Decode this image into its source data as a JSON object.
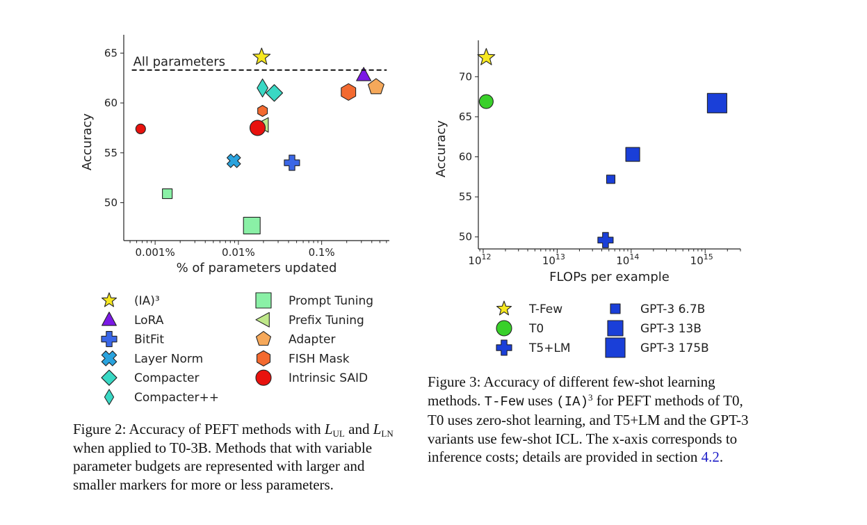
{
  "figure2": {
    "caption_label": "Figure 2:",
    "caption_parts": [
      "Accuracy of PEFT methods with",
      "L",
      "UL",
      "and",
      "L",
      "LN",
      "when applied to T0-3B. Methods that with variable parameter budgets are represented with larger and smaller markers for more or less parameters."
    ],
    "annotation": "All parameters",
    "legend": [
      {
        "label": "(IA)³",
        "marker": "star",
        "color": "#f7e81f"
      },
      {
        "label": "LoRA",
        "marker": "triangle-up",
        "color": "#7b18e6"
      },
      {
        "label": "BitFit",
        "marker": "plus",
        "color": "#3a66e6"
      },
      {
        "label": "Layer Norm",
        "marker": "x",
        "color": "#2aa3de"
      },
      {
        "label": "Compacter",
        "marker": "diamond",
        "color": "#39d8c4"
      },
      {
        "label": "Compacter++",
        "marker": "thin-diamond",
        "color": "#39d8c4"
      },
      {
        "label": "Prompt Tuning",
        "marker": "square",
        "color": "#8af0a6"
      },
      {
        "label": "Prefix Tuning",
        "marker": "triangle-left",
        "color": "#bfe88a"
      },
      {
        "label": "Adapter",
        "marker": "pentagon",
        "color": "#f5a85a"
      },
      {
        "label": "FISH Mask",
        "marker": "hexagon",
        "color": "#f36a30"
      },
      {
        "label": "Intrinsic SAID",
        "marker": "circle",
        "color": "#e8120e"
      }
    ]
  },
  "figure3": {
    "caption_label": "Figure 3:",
    "caption_parts": [
      "Accuracy of different few-shot learning methods.",
      "T-Few",
      "uses",
      "(IA)",
      "3",
      "for PEFT methods of T0, T0 uses zero-shot learning, and T5+LM and the GPT-3 variants use few-shot ICL. The x-axis corresponds to inference costs; details are provided in section",
      "4.2",
      "."
    ],
    "legend": [
      {
        "label": "T-Few",
        "marker": "star",
        "color": "#f7e81f"
      },
      {
        "label": "T0",
        "marker": "circle",
        "color": "#39d02a"
      },
      {
        "label": "T5+LM",
        "marker": "plus",
        "color": "#1a3fd8"
      },
      {
        "label": "GPT-3 6.7B",
        "marker": "square",
        "color": "#1a3fd8"
      },
      {
        "label": "GPT-3 13B",
        "marker": "square",
        "color": "#1a3fd8"
      },
      {
        "label": "GPT-3 175B",
        "marker": "square",
        "color": "#1a3fd8"
      }
    ]
  },
  "chart_data": [
    {
      "type": "scatter",
      "xlabel": "% of parameters updated",
      "ylabel": "Accuracy",
      "xscale": "log",
      "xlim": [
        0.00042,
        0.65
      ],
      "ylim": [
        46.2,
        66.0
      ],
      "xticks": [
        {
          "v": 0.001,
          "label": "0.001%"
        },
        {
          "v": 0.01,
          "label": "0.01%"
        },
        {
          "v": 0.1,
          "label": "0.1%"
        }
      ],
      "yticks": [
        50,
        55,
        60,
        65
      ],
      "reference_line": {
        "y": 63.3,
        "style": "dashed",
        "label": "All parameters"
      },
      "points": [
        {
          "series": "(IA)³",
          "x": 0.019,
          "y": 64.6,
          "marker": "star",
          "size": 13
        },
        {
          "series": "LoRA",
          "x": 0.32,
          "y": 62.8,
          "marker": "triangle-up",
          "size": 11
        },
        {
          "series": "Adapter",
          "x": 0.45,
          "y": 61.6,
          "marker": "pentagon",
          "size": 12
        },
        {
          "series": "FISH Mask",
          "x": 0.21,
          "y": 61.1,
          "marker": "hexagon",
          "size": 12
        },
        {
          "series": "Compacter++",
          "x": 0.0195,
          "y": 61.5,
          "marker": "thin-diamond",
          "size": 13
        },
        {
          "series": "Compacter",
          "x": 0.027,
          "y": 61.0,
          "marker": "diamond",
          "size": 12
        },
        {
          "series": "FISH Mask",
          "x": 0.0195,
          "y": 59.2,
          "marker": "hexagon",
          "size": 8
        },
        {
          "series": "Prefix Tuning",
          "x": 0.0195,
          "y": 57.8,
          "marker": "triangle-left",
          "size": 11
        },
        {
          "series": "Intrinsic SAID",
          "x": 0.017,
          "y": 57.5,
          "marker": "circle",
          "size": 11
        },
        {
          "series": "Intrinsic SAID",
          "x": 0.00067,
          "y": 57.4,
          "marker": "circle",
          "size": 7
        },
        {
          "series": "Layer Norm",
          "x": 0.0088,
          "y": 54.2,
          "marker": "x",
          "size": 10
        },
        {
          "series": "BitFit",
          "x": 0.044,
          "y": 54.0,
          "marker": "plus",
          "size": 11
        },
        {
          "series": "Prompt Tuning",
          "x": 0.0014,
          "y": 50.9,
          "marker": "square",
          "size": 7
        },
        {
          "series": "Prompt Tuning",
          "x": 0.0145,
          "y": 47.7,
          "marker": "square",
          "size": 12
        }
      ]
    },
    {
      "type": "scatter",
      "xlabel": "FLOPs per example",
      "ylabel": "Accuracy",
      "xscale": "log",
      "xlim": [
        860000000000.0,
        3000000000000000.0
      ],
      "ylim": [
        48.5,
        73.5
      ],
      "xticks": [
        {
          "v": 1000000000000.0,
          "label": "10",
          "exp": "12"
        },
        {
          "v": 10000000000000.0,
          "label": "10",
          "exp": "13"
        },
        {
          "v": 100000000000000.0,
          "label": "10",
          "exp": "14"
        },
        {
          "v": 1000000000000000.0,
          "label": "10",
          "exp": "15"
        }
      ],
      "yticks": [
        50,
        55,
        60,
        65,
        70
      ],
      "points": [
        {
          "series": "T-Few",
          "x": 1100000000000.0,
          "y": 72.4,
          "marker": "star",
          "size": 13
        },
        {
          "series": "T0",
          "x": 1100000000000.0,
          "y": 66.9,
          "marker": "circle",
          "size": 10
        },
        {
          "series": "T5+LM",
          "x": 45000000000000.0,
          "y": 49.6,
          "marker": "plus",
          "size": 11
        },
        {
          "series": "GPT-3 6.7B",
          "x": 53000000000000.0,
          "y": 57.2,
          "marker": "square",
          "size": 6
        },
        {
          "series": "GPT-3 13B",
          "x": 105000000000000.0,
          "y": 60.3,
          "marker": "square",
          "size": 10
        },
        {
          "series": "GPT-3 175B",
          "x": 1450000000000000.0,
          "y": 66.7,
          "marker": "square",
          "size": 14
        }
      ]
    }
  ]
}
